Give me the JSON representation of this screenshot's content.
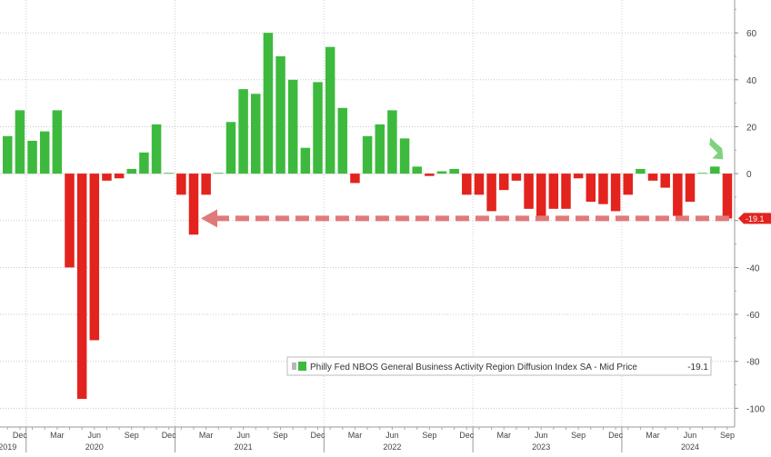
{
  "chart_data": {
    "type": "bar",
    "legend_label": "Philly Fed NBOS General Business Activity Region Diffusion Index SA - Mid Price",
    "legend_value": "-19.1",
    "legend_placement": "bottom-right",
    "last_value_label": "-19.1",
    "ylim": [
      -108,
      74
    ],
    "y_ticks": [
      60,
      40,
      20,
      0,
      -20,
      -40,
      -60,
      -80,
      -100
    ],
    "y_tick_labels": [
      "60",
      "40",
      "20",
      "0",
      "-20",
      "-40",
      "-60",
      "-80",
      "-100"
    ],
    "grid": true,
    "colors": {
      "positive": "#3dba3d",
      "negative": "#e3231e",
      "arrow": "#e07a7a",
      "highlight_arrow": "#7fd37f"
    },
    "x_start_month": "2019-11",
    "values": [
      16,
      27,
      14,
      18,
      27,
      -40,
      -96,
      -71,
      -3,
      -2,
      2,
      9,
      21,
      0,
      -9,
      -26,
      -9,
      0,
      22,
      36,
      34,
      60,
      50,
      40,
      11,
      39,
      54,
      28,
      -4,
      16,
      21,
      27,
      15,
      3,
      -1,
      1,
      2,
      -9,
      -9,
      -16,
      -7,
      -3,
      -15,
      -18,
      -15,
      -15,
      -2,
      -12,
      -13,
      -16,
      -9,
      2,
      -3,
      -6,
      -18,
      -12,
      0,
      3,
      -19.1
    ],
    "x_month_labels": [
      {
        "index": 1,
        "label": "Dec"
      },
      {
        "index": 4,
        "label": "Mar"
      },
      {
        "index": 7,
        "label": "Jun"
      },
      {
        "index": 10,
        "label": "Sep"
      },
      {
        "index": 13,
        "label": "Dec"
      },
      {
        "index": 16,
        "label": "Mar"
      },
      {
        "index": 19,
        "label": "Jun"
      },
      {
        "index": 22,
        "label": "Sep"
      },
      {
        "index": 25,
        "label": "Dec"
      },
      {
        "index": 28,
        "label": "Mar"
      },
      {
        "index": 31,
        "label": "Jun"
      },
      {
        "index": 34,
        "label": "Sep"
      },
      {
        "index": 37,
        "label": "Dec"
      },
      {
        "index": 40,
        "label": "Mar"
      },
      {
        "index": 43,
        "label": "Jun"
      },
      {
        "index": 46,
        "label": "Sep"
      },
      {
        "index": 49,
        "label": "Dec"
      },
      {
        "index": 52,
        "label": "Mar"
      },
      {
        "index": 55,
        "label": "Jun"
      },
      {
        "index": 58,
        "label": "Sep"
      }
    ],
    "x_year_labels": [
      {
        "index": 0,
        "label": "2019"
      },
      {
        "index": 7,
        "label": "2020"
      },
      {
        "index": 19,
        "label": "2021"
      },
      {
        "index": 31,
        "label": "2022"
      },
      {
        "index": 43,
        "label": "2023"
      },
      {
        "index": 55,
        "label": "2024"
      }
    ],
    "year_boundaries": [
      1.5,
      13.5,
      25.5,
      37.5,
      49.5
    ],
    "reference_arrow": {
      "from_index": 58,
      "to_index": 15,
      "value": -19.1
    },
    "highlight_arrow_index": 57
  }
}
